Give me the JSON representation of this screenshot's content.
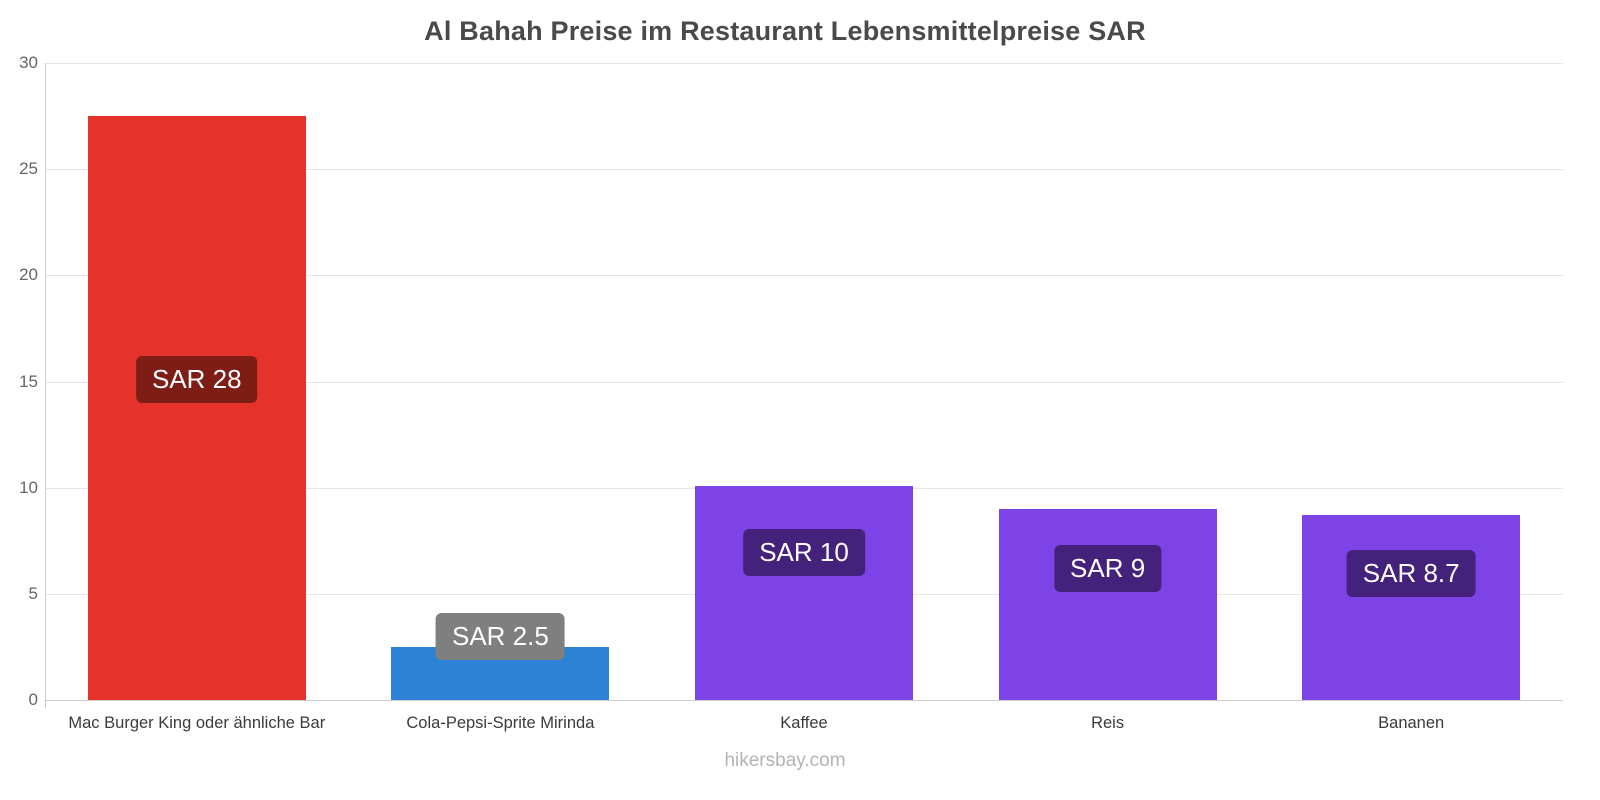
{
  "title": "Al Bahah Preise im Restaurant Lebensmittelpreise SAR",
  "footer": "hikersbay.com",
  "chart_data": {
    "type": "bar",
    "title": "Al Bahah Preise im Restaurant Lebensmittelpreise SAR",
    "xlabel": "",
    "ylabel": "",
    "categories": [
      "Mac Burger King oder ähnliche Bar",
      "Cola-Pepsi-Sprite Mirinda",
      "Kaffee",
      "Reis",
      "Bananen"
    ],
    "values": [
      27.5,
      2.5,
      10.1,
      9,
      8.7
    ],
    "value_labels": [
      "SAR 28",
      "SAR 2.5",
      "SAR 10",
      "SAR 9",
      "SAR 8.7"
    ],
    "bar_colors": [
      "#e5322a",
      "#2d82d6",
      "#7d43e6",
      "#7d43e6",
      "#7d43e6"
    ],
    "value_label_colors": [
      "#7e1d16",
      "#7f7f7f",
      "#44217a",
      "#44217a",
      "#44217a"
    ],
    "ylim": [
      0,
      30
    ],
    "yticks": [
      0,
      5,
      10,
      15,
      20,
      25,
      30
    ],
    "grid": true,
    "legend": false,
    "watermark": "hikersbay.com"
  }
}
